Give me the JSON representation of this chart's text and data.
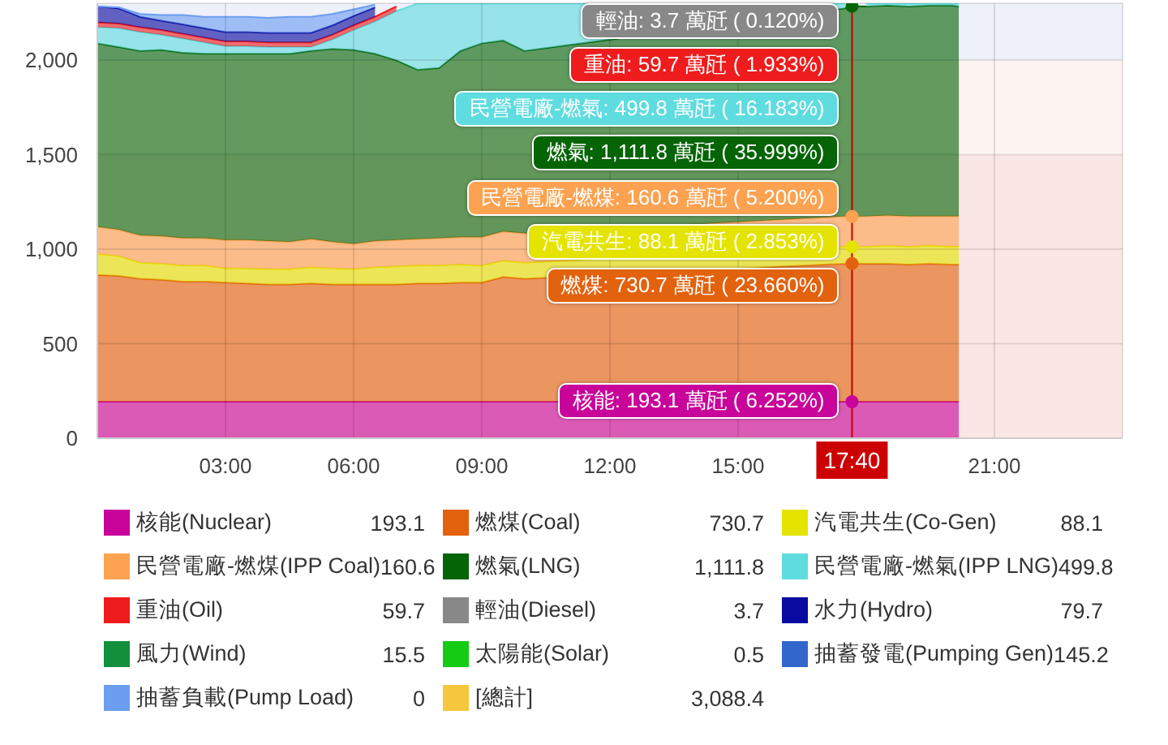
{
  "chart_data": {
    "type": "area",
    "stacked": true,
    "x": [
      0,
      0.5,
      1,
      1.5,
      2,
      2.5,
      3,
      3.5,
      4,
      4.5,
      5,
      5.5,
      6,
      6.5,
      7,
      7.5,
      8,
      8.5,
      9,
      9.5,
      10,
      17.5,
      17.66667,
      18,
      18.5,
      19,
      19.5,
      20,
      20.16667
    ],
    "xlim": [
      0,
      24
    ],
    "xticks": [
      {
        "value": 3,
        "label": "03:00"
      },
      {
        "value": 6,
        "label": "06:00"
      },
      {
        "value": 9,
        "label": "09:00"
      },
      {
        "value": 12,
        "label": "12:00"
      },
      {
        "value": 15,
        "label": "15:00"
      },
      {
        "value": 17.66667,
        "label": "17:40"
      },
      {
        "value": 21,
        "label": "21:00"
      }
    ],
    "ylim": [
      0,
      2300
    ],
    "yticks": [
      0,
      500,
      {
        "value": 1000,
        "label": "1,000"
      },
      {
        "value": 1500,
        "label": "1,500"
      },
      {
        "value": 2000,
        "label": "2,000"
      }
    ],
    "grid": true,
    "legend": "bottom",
    "series": [
      {
        "name": "核能(Nuclear)",
        "color": "#c8049a",
        "values": [
          193.1,
          193.1,
          193.1,
          193.1,
          193.1,
          193.1,
          193.1,
          193.1,
          193.1,
          193.1,
          193.1,
          193.1,
          193.1,
          193.1,
          193.1,
          193.1,
          193.1,
          193.1,
          193.1,
          193.1,
          193.1,
          193.1,
          193.1,
          193.1,
          193.1,
          193.1,
          193.1,
          193.1,
          193.1
        ]
      },
      {
        "name": "燃煤(Coal)",
        "color": "#e2620e",
        "values": [
          670,
          665,
          650,
          645,
          635,
          635,
          630,
          625,
          620,
          620,
          625,
          620,
          620,
          620,
          620,
          625,
          625,
          630,
          630,
          660,
          650,
          730,
          730.7,
          730,
          730,
          725,
          730,
          725,
          725
        ]
      },
      {
        "name": "汽電共生(Co-Gen)",
        "color": "#e4e400",
        "values": [
          110,
          105,
          85,
          85,
          85,
          85,
          75,
          80,
          80,
          80,
          85,
          85,
          80,
          90,
          95,
          95,
          95,
          95,
          90,
          85,
          85,
          90,
          88.1,
          90,
          95,
          95,
          95,
          95,
          95
        ]
      },
      {
        "name": "民營電廠-燃煤(IPP Coal)",
        "color": "#fca250",
        "values": [
          145,
          140,
          145,
          145,
          145,
          145,
          150,
          150,
          150,
          145,
          150,
          140,
          135,
          140,
          140,
          140,
          145,
          145,
          150,
          155,
          155,
          160,
          160.6,
          160,
          160,
          160,
          155,
          160,
          160
        ]
      },
      {
        "name": "燃氣(LNG)",
        "color": "#056405",
        "values": [
          970,
          965,
          975,
          985,
          980,
          975,
          985,
          985,
          990,
          995,
          995,
          1020,
          1025,
          990,
          950,
          895,
          900,
          985,
          1025,
          1010,
          965,
          1100,
          1111.8,
          1110,
          1110,
          1110,
          1115,
          1115,
          1110
        ]
      },
      {
        "name": "民營電廠-燃氣(IPP LNG)",
        "color": "#5fdce0",
        "values": [
          85,
          100,
          100,
          80,
          75,
          60,
          40,
          40,
          35,
          35,
          20,
          50,
          105,
          170,
          260,
          350,
          340,
          250,
          210,
          195,
          250,
          25,
          null,
          15,
          10,
          15,
          10,
          10,
          15
        ]
      },
      {
        "name": "重油(Oil)",
        "color": "#ee1c1c",
        "values": [
          25,
          25,
          25,
          25,
          25,
          25,
          25,
          25,
          25,
          25,
          25,
          25,
          25,
          25,
          25,
          null,
          null,
          null,
          null,
          null,
          null,
          null,
          null,
          null,
          null,
          null,
          null,
          null,
          null
        ]
      },
      {
        "name": "輕油(Diesel)",
        "color": "#888888",
        "values": [
          null,
          null,
          null,
          null,
          null,
          null,
          null,
          null,
          null,
          null,
          null,
          null,
          null,
          null,
          null,
          null,
          null,
          null,
          null,
          null,
          null,
          null,
          null,
          null,
          null,
          null,
          null,
          null,
          null
        ]
      },
      {
        "name": "水力(Hydro)",
        "color": "#0a0aa0",
        "values": [
          85,
          80,
          55,
          50,
          50,
          50,
          50,
          50,
          50,
          50,
          50,
          50,
          50,
          50,
          null,
          null,
          null,
          null,
          null,
          null,
          null,
          null,
          null,
          null,
          null,
          null,
          null,
          null,
          null
        ]
      },
      {
        "name": "風力(Wind)",
        "color": "#12903c",
        "values": [
          null,
          null,
          null,
          null,
          null,
          null,
          null,
          null,
          null,
          null,
          null,
          null,
          null,
          null,
          null,
          null,
          null,
          null,
          null,
          null,
          null,
          null,
          null,
          null,
          null,
          null,
          null,
          null,
          null
        ]
      },
      {
        "name": "太陽能(Solar)",
        "color": "#14cc14",
        "values": [
          null,
          null,
          null,
          null,
          null,
          null,
          null,
          null,
          null,
          null,
          null,
          null,
          null,
          null,
          null,
          null,
          null,
          null,
          null,
          null,
          null,
          null,
          null,
          null,
          null,
          null,
          null,
          null,
          null
        ]
      },
      {
        "name": "抽蓄發電(Pumping Gen)",
        "color": "#3366cc",
        "values": [
          null,
          null,
          null,
          null,
          null,
          null,
          null,
          null,
          null,
          null,
          null,
          null,
          null,
          null,
          null,
          null,
          null,
          null,
          null,
          null,
          null,
          null,
          null,
          null,
          null,
          null,
          null,
          null,
          null
        ]
      },
      {
        "name": "抽蓄負載(Pump Load)",
        "color": "#6b9ef0",
        "values": [
          0,
          5,
          15,
          30,
          50,
          60,
          80,
          80,
          80,
          85,
          85,
          60,
          35,
          15,
          null,
          null,
          null,
          null,
          null,
          null,
          null,
          null,
          null,
          null,
          null,
          null,
          null,
          null,
          null
        ]
      }
    ],
    "ref_lines": [
      {
        "axis": "x",
        "value": 17.66667,
        "color": "#cc0000"
      }
    ],
    "bands": [
      {
        "axis": "y",
        "from": 0,
        "to": 1500,
        "color": "#fae6e4"
      },
      {
        "axis": "y",
        "from": 1500,
        "to": 2000,
        "color": "#fdf3f1"
      },
      {
        "axis": "y",
        "from": 2000,
        "to": 2300,
        "color": "#eef0fa"
      }
    ],
    "annotations": [
      "核能: 193.1 萬瓩 ( 6.252%)",
      "燃煤: 730.7 萬瓩 ( 23.660%)",
      "汽電共生: 88.1 萬瓩 ( 2.853%)",
      "民營電廠-燃煤: 160.6 萬瓩 ( 5.200%)",
      "燃氣: 1,111.8 萬瓩 ( 35.999%)",
      "民營電廠-燃氣: 499.8 萬瓩 ( 16.183%)",
      "重油: 59.7 萬瓩 ( 1.933%)",
      "輕油: 3.7 萬瓩 ( 0.120%)",
      "193.1",
      "730.7",
      "88.1",
      "160.6",
      "1,111.8",
      "499.8",
      "59.7",
      "3.7",
      "79.7",
      "15.5",
      "0.5",
      "145.2",
      "0",
      "[總計]",
      "3,088.4"
    ]
  }
}
